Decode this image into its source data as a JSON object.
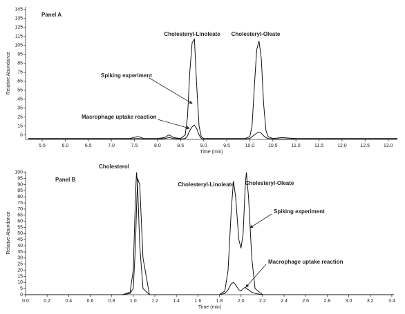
{
  "chart_data": [
    {
      "type": "line",
      "title": "Panel A",
      "xlabel": "Time (min)",
      "ylabel": "Relative Abundance",
      "peak_labels": [
        "Cholesteryl-Linoleate",
        "Cholesteryl-Oleate"
      ],
      "xlim": [
        5.14,
        13.2
      ],
      "ylim": [
        0,
        148
      ],
      "xticks": [
        {
          "value": 5.5,
          "label": "5.5"
        },
        {
          "value": 6,
          "label": "6.0"
        },
        {
          "value": 6.5,
          "label": "6.5"
        },
        {
          "value": 7,
          "label": "7.0"
        },
        {
          "value": 7.5,
          "label": "7.5"
        },
        {
          "value": 8,
          "label": "8.0"
        },
        {
          "value": 8.5,
          "label": "8.5"
        },
        {
          "value": 9,
          "label": "9.0"
        },
        {
          "value": 9.5,
          "label": "9.5"
        },
        {
          "value": 10,
          "label": "10.0"
        },
        {
          "value": 10.5,
          "label": "10.5"
        },
        {
          "value": 11,
          "label": "11.0"
        },
        {
          "value": 11.5,
          "label": "11.5"
        },
        {
          "value": 12,
          "label": "12.0"
        },
        {
          "value": 12.5,
          "label": "12.5"
        },
        {
          "value": 13,
          "label": "13.0"
        }
      ],
      "yticks": [
        5,
        15,
        25,
        35,
        45,
        55,
        65,
        75,
        85,
        95,
        105,
        115,
        125,
        135,
        145
      ],
      "x": [
        5.2,
        5.5,
        6.0,
        6.5,
        7.0,
        7.4,
        7.55,
        7.6,
        7.7,
        8.0,
        8.15,
        8.25,
        8.35,
        8.5,
        8.6,
        8.65,
        8.7,
        8.75,
        8.8,
        8.85,
        8.9,
        8.95,
        9.0,
        9.1,
        9.5,
        9.9,
        10.0,
        10.05,
        10.1,
        10.15,
        10.2,
        10.25,
        10.3,
        10.35,
        10.4,
        10.5,
        10.7,
        11.0,
        12.0,
        13.2
      ],
      "series": [
        {
          "name": "Spiking experiment",
          "color": "#111111",
          "values": [
            1,
            1,
            1,
            1,
            1,
            1,
            3,
            3,
            1,
            1,
            2,
            5,
            2,
            1,
            5,
            25,
            75,
            108,
            112,
            60,
            15,
            3,
            1,
            1,
            1,
            1,
            3,
            15,
            60,
            100,
            110,
            90,
            40,
            10,
            3,
            1,
            2,
            1,
            1,
            1
          ]
        },
        {
          "name": "Macrophage uptake reaction",
          "color": "#111111",
          "values": [
            0.5,
            0.5,
            0.5,
            0.5,
            0.5,
            0.5,
            1,
            1,
            0.5,
            0.5,
            1,
            2,
            1,
            0.5,
            1,
            4,
            10,
            14,
            16,
            12,
            5,
            1,
            0.5,
            0.5,
            0.5,
            0.5,
            1,
            3,
            5,
            7,
            8,
            7,
            4,
            2,
            1,
            0.5,
            0.5,
            0.5,
            0.5,
            0.5
          ]
        }
      ]
    },
    {
      "type": "line",
      "title": "Panel B",
      "xlabel": "Time (min)",
      "ylabel": "Relative Abundance",
      "peak_labels": [
        "Cholesterol",
        "Cholesteryl-Linoleate",
        "Cholesteryl-Oleate"
      ],
      "xlim": [
        0,
        3.42
      ],
      "ylim": [
        0,
        101
      ],
      "xticks": [
        {
          "value": 0,
          "label": "0.0"
        },
        0.2,
        0.4,
        0.6,
        0.8,
        {
          "value": 1,
          "label": "1.0"
        },
        1.2,
        1.4,
        1.6,
        1.8,
        {
          "value": 2,
          "label": "2.0"
        },
        2.2,
        2.4,
        2.6,
        2.8,
        {
          "value": 3,
          "label": "3.0"
        },
        3.2,
        3.4
      ],
      "yticks": [
        0,
        5,
        10,
        15,
        20,
        25,
        30,
        35,
        40,
        45,
        50,
        55,
        60,
        65,
        70,
        75,
        80,
        85,
        90,
        95,
        100
      ],
      "x": [
        0,
        0.9,
        0.97,
        1.0,
        1.02,
        1.03,
        1.04,
        1.06,
        1.09,
        1.15,
        1.8,
        1.85,
        1.88,
        1.91,
        1.93,
        1.95,
        1.98,
        2.0,
        2.02,
        2.04,
        2.05,
        2.07,
        2.1,
        2.13,
        2.2,
        3.42
      ],
      "series": [
        {
          "name": "Spiking experiment",
          "color": "#111111",
          "values": [
            0,
            0,
            2,
            20,
            80,
            100,
            90,
            40,
            5,
            0,
            0,
            3,
            20,
            70,
            93,
            80,
            45,
            38,
            50,
            90,
            100,
            80,
            30,
            5,
            0,
            0
          ]
        },
        {
          "name": "Macrophage uptake reaction",
          "color": "#111111",
          "values": [
            0,
            0,
            1,
            5,
            40,
            70,
            95,
            90,
            30,
            0,
            0,
            1,
            4,
            9,
            10,
            8,
            4,
            3,
            5,
            6,
            5,
            4,
            2,
            1,
            0,
            0
          ]
        }
      ]
    }
  ]
}
